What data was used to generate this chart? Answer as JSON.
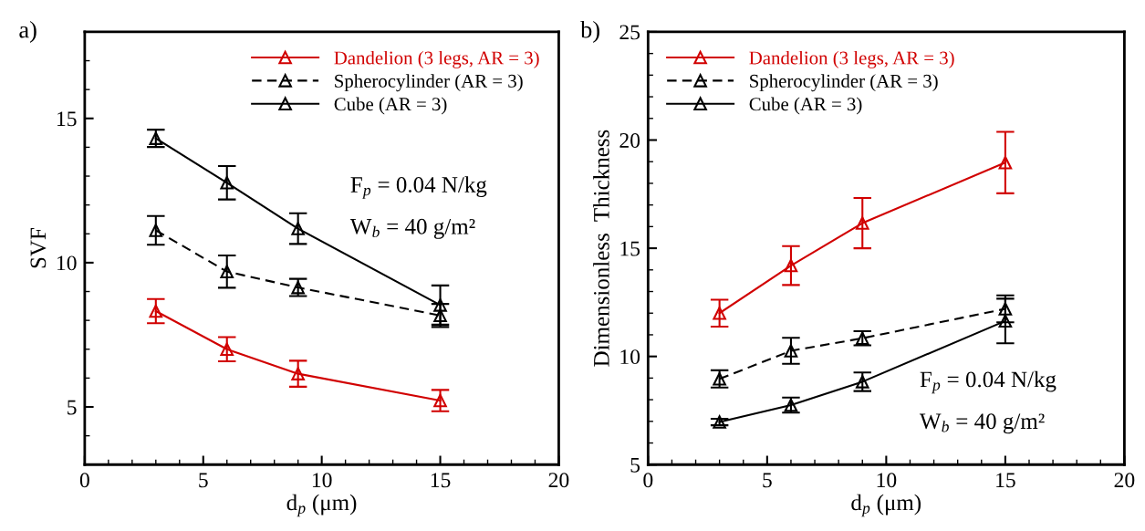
{
  "chart_data": [
    {
      "type": "line",
      "xlabel": "d$_{p}$ (μm)",
      "ylabel": "SVF",
      "x": [
        3,
        6,
        9,
        15
      ],
      "xlim": [
        0,
        20
      ],
      "xticks": [
        0,
        5,
        10,
        15,
        20
      ],
      "ylim": [
        3,
        18
      ],
      "yticks": [
        5,
        10,
        15
      ],
      "legend": "top right",
      "marker": "triangle",
      "grid": false,
      "annotations": [
        "a)",
        "F$_{p}$ = 0.04 N/kg",
        "W$_{b}$ = 40 g/m²"
      ],
      "series": [
        {
          "name": "Dandelion (3 legs, AR = 3)",
          "color": "#d10000",
          "line_style": "solid",
          "values": [
            8.32,
            7.0,
            6.15,
            5.22
          ],
          "errors": [
            0.42,
            0.42,
            0.45,
            0.37
          ]
        },
        {
          "name": "Spherocylinder (AR = 3)",
          "color": "#000000",
          "line_style": "dashed",
          "values": [
            11.12,
            9.69,
            9.14,
            8.17
          ],
          "errors": [
            0.5,
            0.56,
            0.3,
            0.4
          ]
        },
        {
          "name": "Cube (AR = 3)",
          "color": "#000000",
          "line_style": "solid",
          "values": [
            14.31,
            12.77,
            11.18,
            8.53
          ],
          "errors": [
            0.3,
            0.58,
            0.53,
            0.68
          ]
        }
      ]
    },
    {
      "type": "line",
      "xlabel": "d$_{p}$ (μm)",
      "ylabel": "Dimensionless  Thickness",
      "x": [
        3,
        6,
        9,
        15
      ],
      "xlim": [
        0,
        20
      ],
      "xticks": [
        0,
        5,
        10,
        15,
        20
      ],
      "ylim": [
        5,
        25
      ],
      "yticks": [
        5,
        10,
        15,
        20,
        25
      ],
      "legend": "top left",
      "marker": "triangle",
      "grid": false,
      "annotations": [
        "b)",
        "F$_{p}$ = 0.04 N/kg",
        "W$_{b}$ = 40 g/m²"
      ],
      "series": [
        {
          "name": "Dandelion (3 legs, AR = 3)",
          "color": "#d10000",
          "line_style": "solid",
          "values": [
            12.0,
            14.2,
            16.16,
            18.96
          ],
          "errors": [
            0.62,
            0.9,
            1.16,
            1.42
          ]
        },
        {
          "name": "Spherocylinder (AR = 3)",
          "color": "#000000",
          "line_style": "dashed",
          "values": [
            8.96,
            10.26,
            10.84,
            12.2
          ],
          "errors": [
            0.4,
            0.6,
            0.33,
            0.62
          ]
        },
        {
          "name": "Cube (AR = 3)",
          "color": "#000000",
          "line_style": "solid",
          "values": [
            6.97,
            7.75,
            8.83,
            11.64
          ],
          "errors": [
            0.15,
            0.35,
            0.43,
            1.03
          ]
        }
      ]
    }
  ]
}
